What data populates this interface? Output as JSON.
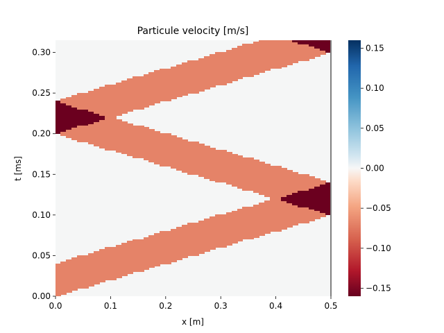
{
  "chart_data": {
    "type": "heatmap",
    "title": "Particule velocity [m/s]",
    "xlabel": "x [m]",
    "ylabel": "t [ms]",
    "xlim": [
      0,
      0.5
    ],
    "ylim": [
      0,
      0.315
    ],
    "x_ticks": [
      "0.0",
      "0.1",
      "0.2",
      "0.3",
      "0.4",
      "0.5"
    ],
    "y_ticks": [
      "0.00",
      "0.05",
      "0.10",
      "0.15",
      "0.20",
      "0.25",
      "0.30"
    ],
    "colorbar": {
      "colormap": "RdBu",
      "vmin": -0.16,
      "vmax": 0.16,
      "ticks": [
        "0.15",
        "0.10",
        "0.05",
        "0.00",
        "−0.05",
        "−0.10",
        "−0.15"
      ]
    },
    "wave": {
      "velocity_value": -0.08,
      "overlap_value": -0.16,
      "background_value": 0.0,
      "pulse_duration_ms": 0.04,
      "transit_time_ms": 0.1,
      "domain_length_m": 0.5,
      "fixed_boundary_x_m": 0.5
    },
    "colors": {
      "band": "#e58368",
      "overlap": "#6b001f",
      "background": "#f5f6f6",
      "boundary_line": "#808080"
    }
  }
}
